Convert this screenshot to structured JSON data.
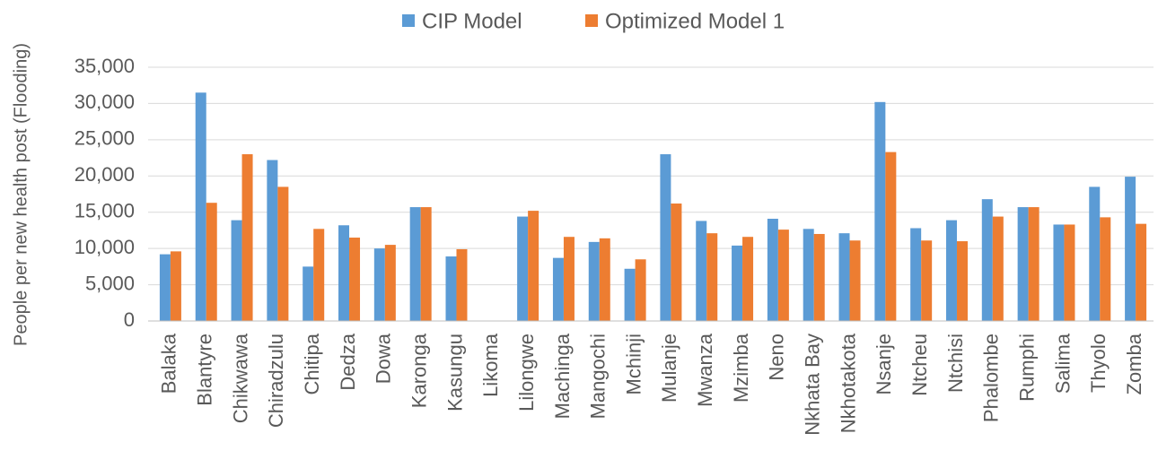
{
  "chart_data": {
    "type": "bar",
    "y_axis_label": "People per new health post (Flooding)",
    "categories": [
      "Balaka",
      "Blantyre",
      "Chikwawa",
      "Chiradzulu",
      "Chitipa",
      "Dedza",
      "Dowa",
      "Karonga",
      "Kasungu",
      "Likoma",
      "Lilongwe",
      "Machinga",
      "Mangochi",
      "Mchinji",
      "Mulanje",
      "Mwanza",
      "Mzimba",
      "Neno",
      "Nkhata Bay",
      "Nkhotakota",
      "Nsanje",
      "Ntcheu",
      "Ntchisi",
      "Phalombe",
      "Rumphi",
      "Salima",
      "Thyolo",
      "Zomba"
    ],
    "series": [
      {
        "name": "CIP Model",
        "color": "#5b9bd5",
        "values": [
          9200,
          31500,
          13900,
          22200,
          7500,
          13200,
          10000,
          15700,
          8900,
          0,
          14400,
          8700,
          10900,
          7200,
          23000,
          13800,
          10400,
          14100,
          12700,
          12100,
          30200,
          12800,
          13900,
          16800,
          15700,
          13300,
          18500,
          19900
        ]
      },
      {
        "name": "Optimized Model 1",
        "color": "#ed7d31",
        "values": [
          9600,
          16300,
          23000,
          18500,
          12700,
          11500,
          10500,
          15700,
          9900,
          0,
          15200,
          11600,
          11400,
          8500,
          16200,
          12100,
          11600,
          12600,
          12000,
          11100,
          23300,
          11100,
          11000,
          14400,
          15700,
          13300,
          14300,
          13400
        ]
      }
    ],
    "ylim": [
      0,
      35000
    ],
    "yticks": [
      0,
      {
        "value": 5000,
        "label": "5,000"
      },
      {
        "value": 10000,
        "label": "10,000"
      },
      {
        "value": 15000,
        "label": "15,000"
      },
      {
        "value": 20000,
        "label": "20,000"
      },
      {
        "value": 25000,
        "label": "25,000"
      },
      {
        "value": 30000,
        "label": "30,000"
      },
      {
        "value": 35000,
        "label": "35,000"
      }
    ],
    "grid": true,
    "legend": "top"
  }
}
